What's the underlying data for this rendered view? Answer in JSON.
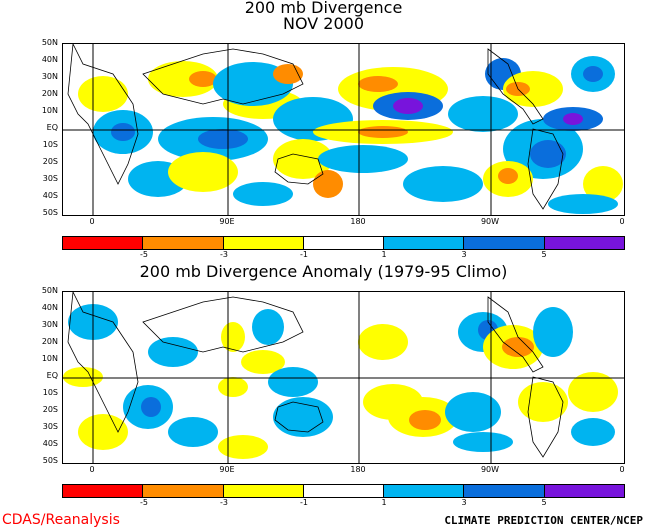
{
  "panel1": {
    "title_line1": "200 mb Divergence",
    "title_line2": "NOV 2000",
    "lat_labels": [
      "50N",
      "40N",
      "30N",
      "20N",
      "10N",
      "EQ",
      "10S",
      "20S",
      "30S",
      "40S",
      "50S"
    ],
    "lon_labels": [
      "0",
      "90E",
      "180",
      "90W",
      "0"
    ]
  },
  "panel2": {
    "title": "200 mb Divergence Anomaly (1979-95 Climo)",
    "lat_labels": [
      "50N",
      "40N",
      "30N",
      "20N",
      "10N",
      "EQ",
      "10S",
      "20S",
      "30S",
      "40S",
      "50S"
    ],
    "lon_labels": [
      "0",
      "90E",
      "180",
      "90W",
      "0"
    ]
  },
  "colorbar": {
    "colors": [
      "#ff0000",
      "#ff8c00",
      "#ffff00",
      "#ffffff",
      "#00b4f0",
      "#0a6edc",
      "#7814dc"
    ],
    "ticks": [
      "-5",
      "-3",
      "-1",
      "1",
      "3",
      "5"
    ]
  },
  "footer": {
    "left": "CDAS/Reanalysis",
    "right": "CLIMATE PREDICTION CENTER/NCEP"
  }
}
